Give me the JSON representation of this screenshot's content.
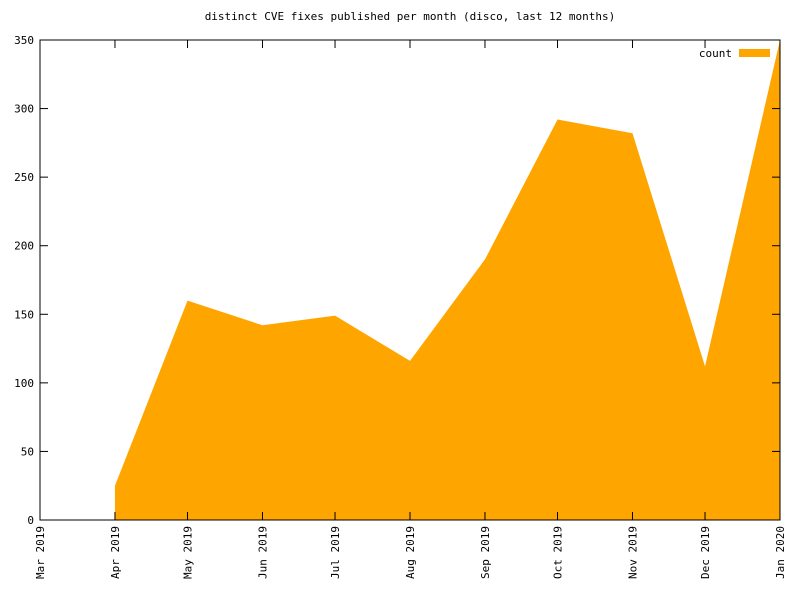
{
  "chart_data": {
    "type": "area",
    "title": "distinct CVE fixes published per month (disco, last 12 months)",
    "x": [
      "2019-04",
      "2019-05",
      "2019-06",
      "2019-07",
      "2019-08",
      "2019-09",
      "2019-10",
      "2019-11",
      "2019-12",
      "2020-01"
    ],
    "series": [
      {
        "name": "count",
        "color": "#ffa500",
        "values": [
          25,
          160,
          142,
          149,
          116,
          190,
          292,
          282,
          112,
          350
        ]
      }
    ],
    "xlim": [
      "2019-03",
      "2020-01"
    ],
    "xticks": [
      {
        "value": "2019-03",
        "label": "Mar 2019"
      },
      {
        "value": "2019-04",
        "label": "Apr 2019"
      },
      {
        "value": "2019-05",
        "label": "May 2019"
      },
      {
        "value": "2019-06",
        "label": "Jun 2019"
      },
      {
        "value": "2019-07",
        "label": "Jul 2019"
      },
      {
        "value": "2019-08",
        "label": "Aug 2019"
      },
      {
        "value": "2019-09",
        "label": "Sep 2019"
      },
      {
        "value": "2019-10",
        "label": "Oct 2019"
      },
      {
        "value": "2019-11",
        "label": "Nov 2019"
      },
      {
        "value": "2019-12",
        "label": "Dec 2019"
      },
      {
        "value": "2020-01",
        "label": "Jan 2020"
      }
    ],
    "ylim": [
      0,
      350
    ],
    "yticks": [
      0,
      50,
      100,
      150,
      200,
      250,
      300,
      350
    ],
    "legend": "top-right"
  }
}
